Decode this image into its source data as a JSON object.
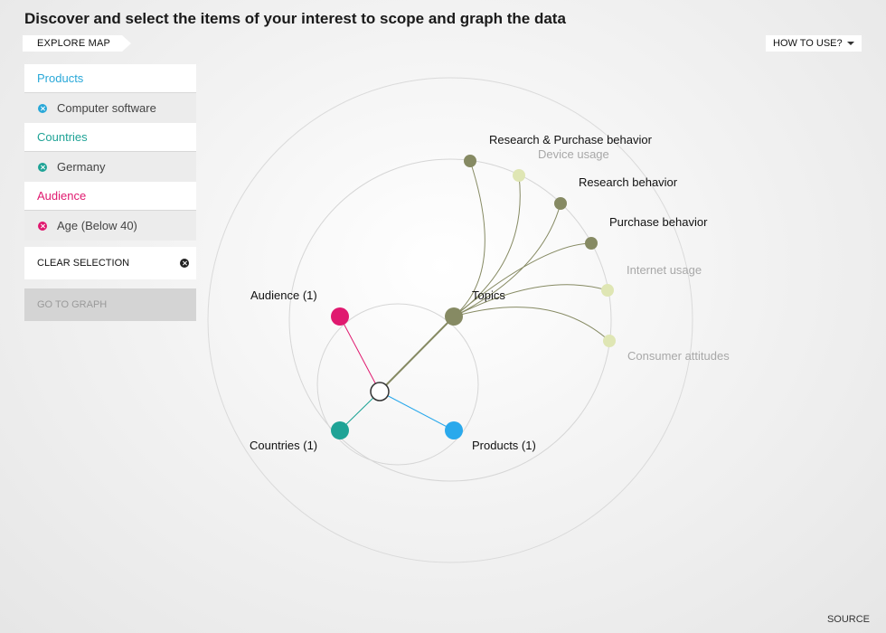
{
  "headline": "Discover and select the items of your interest to scope and graph the data",
  "explore_tab": "EXPLORE MAP",
  "how_to_use": "HOW TO USE?",
  "filters": [
    {
      "title": "Products",
      "color": "#29a8d8",
      "item": "Computer software"
    },
    {
      "title": "Countries",
      "color": "#1fa396",
      "item": "Germany"
    },
    {
      "title": "Audience",
      "color": "#e0196f",
      "item": "Age (Below 40)"
    }
  ],
  "clear_selection": "CLEAR SELECTION",
  "go_to_graph": "GO TO GRAPH",
  "source": "SOURCE",
  "map": {
    "center_nodes": {
      "topics": "Topics",
      "audience": "Audience (1)",
      "countries": "Countries (1)",
      "products": "Products (1)"
    },
    "topics": [
      {
        "label": "Research & Purchase behavior",
        "active": true
      },
      {
        "label": "Device usage",
        "active": false
      },
      {
        "label": "Research behavior",
        "active": true
      },
      {
        "label": "Purchase behavior",
        "active": true
      },
      {
        "label": "Internet usage",
        "active": false
      },
      {
        "label": "Consumer attitudes",
        "active": false
      }
    ],
    "colors": {
      "topics": "#868a63",
      "topic_inactive": "#dfe6b4",
      "audience": "#e0196f",
      "countries": "#1fa396",
      "products": "#2aa9ec"
    }
  }
}
